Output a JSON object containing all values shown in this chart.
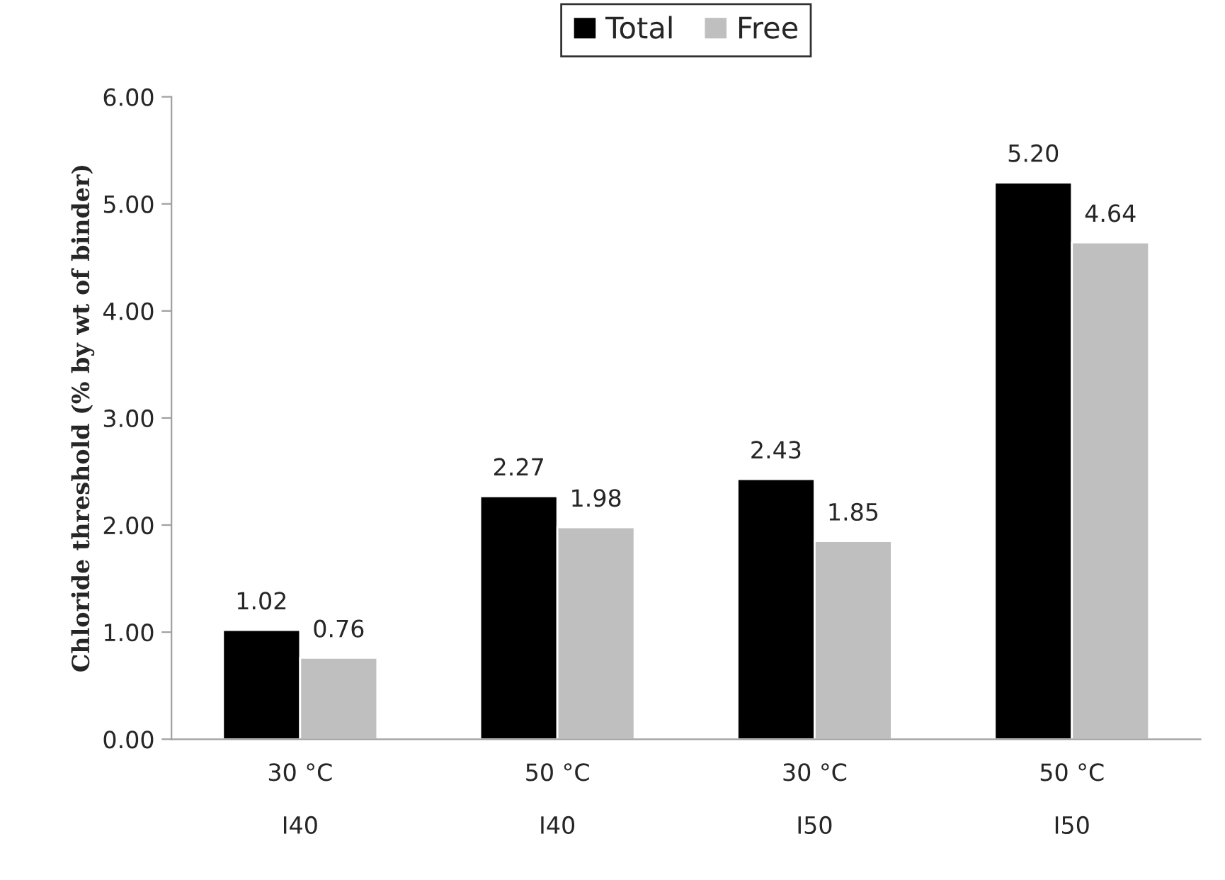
{
  "chart_data": {
    "type": "bar",
    "ylabel": "Chloride threshold (% by wt of binder)",
    "categories": [
      "30 °C\n\nI40",
      "50 °C\n\nI40",
      "30 °C\n\nI50",
      "50 °C\n\nI50"
    ],
    "series": [
      {
        "name": "Total",
        "color": "#000000",
        "values": [
          1.02,
          2.27,
          2.43,
          5.2
        ],
        "value_labels": [
          "1.02",
          "2.27",
          "2.43",
          "5.20"
        ]
      },
      {
        "name": "Free",
        "color": "#bfbfbf",
        "values": [
          0.76,
          1.98,
          1.85,
          4.64
        ],
        "value_labels": [
          "0.76",
          "1.98",
          "1.85",
          "4.64"
        ]
      }
    ],
    "ylim": [
      0,
      6
    ],
    "yticks": [
      {
        "value": 0,
        "label": "0.00"
      },
      {
        "value": 1,
        "label": "1.00"
      },
      {
        "value": 2,
        "label": "2.00"
      },
      {
        "value": 3,
        "label": "3.00"
      },
      {
        "value": 4,
        "label": "4.00"
      },
      {
        "value": 5,
        "label": "5.00"
      },
      {
        "value": 6,
        "label": "6.00"
      }
    ],
    "grid": false,
    "legend": "top"
  }
}
